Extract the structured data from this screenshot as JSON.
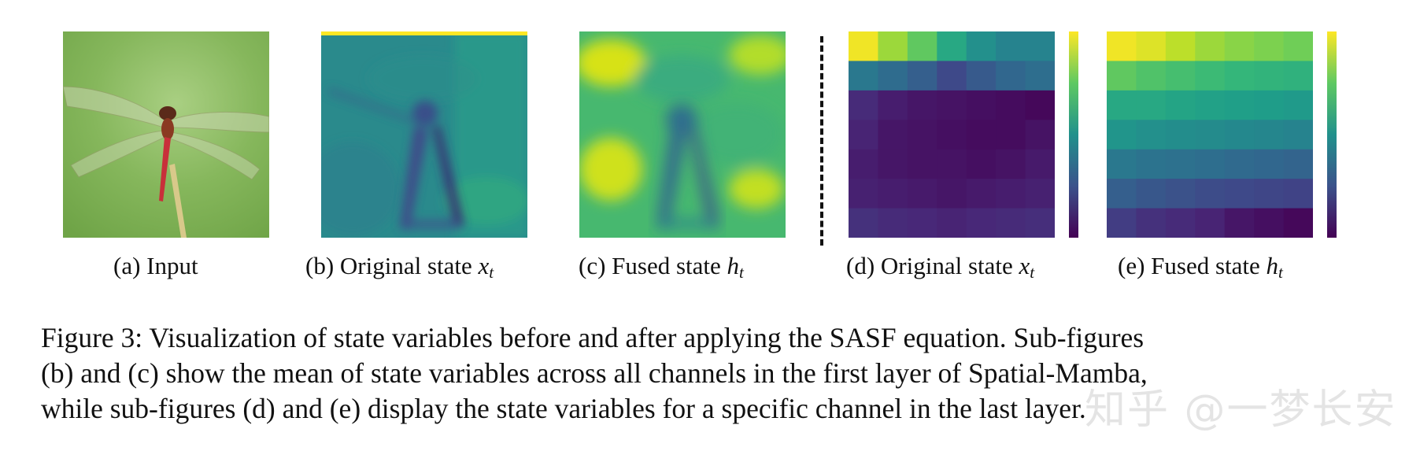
{
  "subfigures": [
    {
      "label": "(a) Input",
      "var": "",
      "sub": ""
    },
    {
      "label": "(b) Original state ",
      "var": "x",
      "sub": "t"
    },
    {
      "label": "(c) Fused state ",
      "var": "h",
      "sub": "t"
    },
    {
      "label": "(d) Original state ",
      "var": "x",
      "sub": "t"
    },
    {
      "label": "(e) Fused state ",
      "var": "h",
      "sub": "t"
    }
  ],
  "caption": {
    "lines": [
      "Figure 3: Visualization of state variables before and after applying the SASF equation. Sub-figures",
      "(b) and (c) show the mean of state variables across all channels in the first layer of Spatial-Mamba,",
      "while sub-figures (d) and (e) display the state variables for a specific channel in the last layer."
    ]
  },
  "watermark": "知乎 @一梦长安",
  "heatmaps": {
    "colormap": "viridis",
    "d_original_state": [
      [
        0.98,
        0.85,
        0.75,
        0.6,
        0.5,
        0.45,
        0.45
      ],
      [
        0.4,
        0.35,
        0.3,
        0.22,
        0.28,
        0.33,
        0.36
      ],
      [
        0.12,
        0.08,
        0.06,
        0.05,
        0.04,
        0.03,
        0.02
      ],
      [
        0.1,
        0.06,
        0.05,
        0.04,
        0.03,
        0.03,
        0.05
      ],
      [
        0.08,
        0.06,
        0.05,
        0.05,
        0.04,
        0.05,
        0.07
      ],
      [
        0.09,
        0.08,
        0.07,
        0.06,
        0.07,
        0.08,
        0.09
      ],
      [
        0.14,
        0.12,
        0.11,
        0.1,
        0.11,
        0.12,
        0.13
      ]
    ],
    "e_fused_state": [
      [
        0.98,
        0.95,
        0.9,
        0.85,
        0.82,
        0.8,
        0.78
      ],
      [
        0.75,
        0.72,
        0.7,
        0.68,
        0.66,
        0.65,
        0.64
      ],
      [
        0.6,
        0.6,
        0.58,
        0.57,
        0.56,
        0.55,
        0.54
      ],
      [
        0.52,
        0.5,
        0.49,
        0.48,
        0.47,
        0.46,
        0.45
      ],
      [
        0.4,
        0.38,
        0.37,
        0.36,
        0.34,
        0.33,
        0.32
      ],
      [
        0.3,
        0.27,
        0.25,
        0.23,
        0.22,
        0.21,
        0.2
      ],
      [
        0.18,
        0.14,
        0.12,
        0.1,
        0.06,
        0.04,
        0.02
      ]
    ]
  }
}
